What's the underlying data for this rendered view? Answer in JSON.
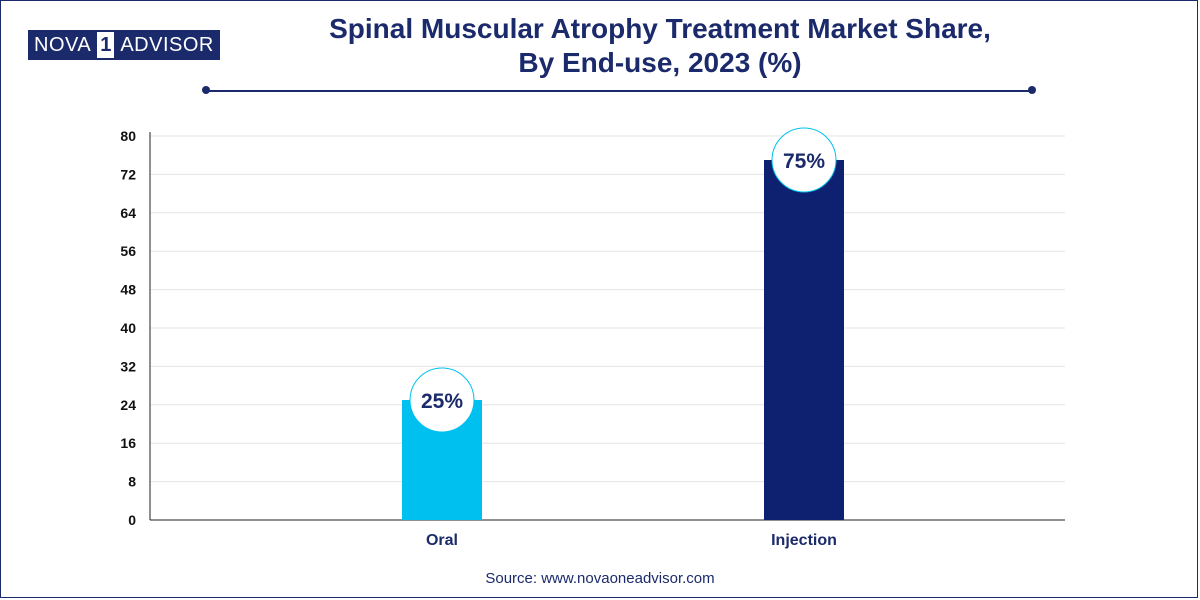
{
  "brand": {
    "left": "NOVA",
    "number": "1",
    "right": "ADVISOR"
  },
  "title_line1": "Spinal Muscular Atrophy Treatment Market Share,",
  "title_line2": "By End-use, 2023 (%)",
  "source": "Source: www.novaoneadvisor.com",
  "colors": {
    "navy": "#1b2a6b",
    "oral": "#00c0f0",
    "injection": "#0e2170",
    "grid": "#e4e4e4"
  },
  "chart_data": {
    "type": "bar",
    "title": "Spinal Muscular Atrophy Treatment Market Share, By End-use, 2023 (%)",
    "categories": [
      "Oral",
      "Injection"
    ],
    "values": [
      25,
      75
    ],
    "data_labels": [
      "25%",
      "75%"
    ],
    "ylim": [
      0,
      80
    ],
    "yticks": [
      0,
      8,
      16,
      24,
      32,
      40,
      48,
      56,
      64,
      72,
      80
    ],
    "xlabel": "",
    "ylabel": "",
    "grid": true
  }
}
